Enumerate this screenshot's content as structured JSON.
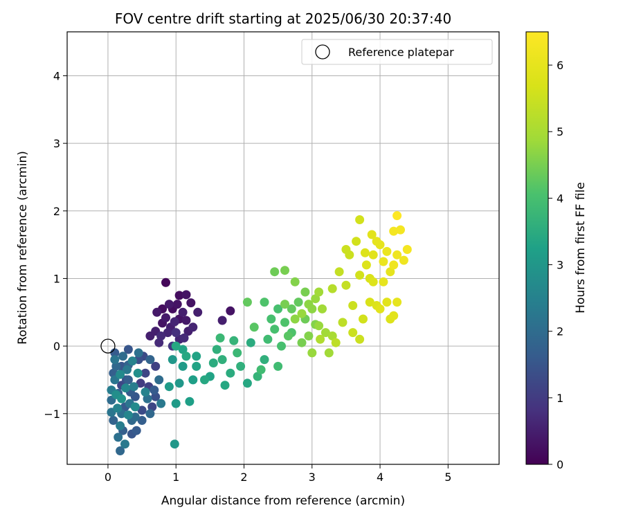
{
  "chart_data": {
    "type": "scatter",
    "title": "FOV centre drift starting at 2025/06/30 20:37:40",
    "xlabel": "Angular distance from reference (arcmin)",
    "ylabel": "Rotation from reference (arcmin)",
    "xlim": [
      -0.6,
      5.75
    ],
    "ylim": [
      -1.75,
      4.65
    ],
    "xticks": [
      0,
      1,
      2,
      3,
      4,
      5
    ],
    "yticks": [
      -1,
      0,
      1,
      2,
      3,
      4
    ],
    "xtick_labels": [
      "0",
      "1",
      "2",
      "3",
      "4",
      "5"
    ],
    "ytick_labels": [
      "−1",
      "0",
      "1",
      "2",
      "3",
      "4"
    ],
    "grid": true,
    "legend": {
      "position": "top-right",
      "entries": [
        "Reference platepar"
      ]
    },
    "reference_point": {
      "label": "Reference platepar",
      "x": 0,
      "y": 0
    },
    "colorbar": {
      "label": "Hours from first FF file",
      "range": [
        0,
        6.5
      ],
      "ticks": [
        0,
        1,
        2,
        3,
        4,
        5,
        6
      ],
      "tick_labels": [
        "0",
        "1",
        "2",
        "3",
        "4",
        "5",
        "6"
      ],
      "colormap": "viridis"
    },
    "colors": {
      "grid": "#b0b0b0",
      "reference_marker": "#000000"
    },
    "points": [
      [
        0.85,
        0.94,
        0.1
      ],
      [
        1.05,
        0.75,
        0.2
      ],
      [
        1.15,
        0.76,
        0.3
      ],
      [
        0.9,
        0.62,
        0.4
      ],
      [
        1.22,
        0.64,
        0.3
      ],
      [
        1.1,
        0.5,
        0.5
      ],
      [
        0.98,
        0.36,
        0.6
      ],
      [
        1.32,
        0.5,
        0.5
      ],
      [
        0.8,
        0.34,
        0.3
      ],
      [
        0.72,
        0.5,
        0.4
      ],
      [
        1.25,
        0.28,
        0.6
      ],
      [
        0.62,
        0.15,
        0.5
      ],
      [
        0.75,
        0.05,
        0.7
      ],
      [
        1.0,
        0.2,
        0.8
      ],
      [
        1.12,
        0.12,
        0.7
      ],
      [
        0.88,
        0.2,
        0.6
      ],
      [
        0.95,
        0.55,
        0.2
      ],
      [
        1.05,
        0.4,
        0.3
      ],
      [
        0.8,
        0.55,
        0.2
      ],
      [
        1.15,
        0.38,
        0.4
      ],
      [
        0.7,
        0.22,
        0.5
      ],
      [
        1.8,
        0.52,
        0.3
      ],
      [
        1.68,
        0.38,
        0.5
      ],
      [
        0.95,
        0.0,
        0.9
      ],
      [
        1.05,
        0.1,
        0.6
      ],
      [
        0.85,
        0.42,
        0.4
      ],
      [
        1.18,
        0.22,
        0.5
      ],
      [
        0.92,
        0.28,
        0.5
      ],
      [
        1.02,
        0.62,
        0.3
      ],
      [
        0.78,
        0.15,
        0.7
      ],
      [
        0.1,
        -0.1,
        1.6
      ],
      [
        0.2,
        -0.3,
        1.5
      ],
      [
        0.3,
        -0.5,
        1.7
      ],
      [
        0.15,
        -0.7,
        1.8
      ],
      [
        0.25,
        -0.9,
        1.6
      ],
      [
        0.35,
        -1.1,
        1.9
      ],
      [
        0.05,
        -0.8,
        2.0
      ],
      [
        0.45,
        -0.2,
        1.4
      ],
      [
        0.55,
        -0.4,
        1.2
      ],
      [
        0.4,
        -0.75,
        1.5
      ],
      [
        0.22,
        -1.25,
        1.7
      ],
      [
        0.18,
        -1.55,
        1.9
      ],
      [
        0.3,
        -0.05,
        1.5
      ],
      [
        0.5,
        -0.95,
        1.3
      ],
      [
        0.6,
        -0.6,
        1.1
      ],
      [
        0.1,
        -0.5,
        2.2
      ],
      [
        0.2,
        -1.0,
        2.1
      ],
      [
        0.28,
        -0.35,
        2.3
      ],
      [
        0.38,
        -0.6,
        2.4
      ],
      [
        0.08,
        -1.1,
        1.8
      ],
      [
        0.42,
        -1.25,
        1.6
      ],
      [
        0.65,
        -0.9,
        1.2
      ],
      [
        0.52,
        -0.15,
        1.3
      ],
      [
        0.32,
        -0.85,
        2.2
      ],
      [
        0.12,
        -0.3,
        1.9
      ],
      [
        0.48,
        -0.55,
        1.0
      ],
      [
        0.7,
        -0.3,
        1.1
      ],
      [
        0.7,
        -0.75,
        1.4
      ],
      [
        0.26,
        -0.62,
        2.6
      ],
      [
        0.18,
        -0.42,
        2.7
      ],
      [
        0.36,
        -0.22,
        2.5
      ],
      [
        0.44,
        -0.4,
        2.8
      ],
      [
        0.05,
        -0.65,
        2.4
      ],
      [
        0.2,
        -0.78,
        2.9
      ],
      [
        0.3,
        -1.02,
        2.6
      ],
      [
        0.14,
        -0.92,
        2.5
      ],
      [
        0.58,
        -0.78,
        2.1
      ],
      [
        0.62,
        -0.2,
        1.8
      ],
      [
        0.75,
        -0.5,
        2.0
      ],
      [
        0.22,
        -0.15,
        2.0
      ],
      [
        0.4,
        -1.05,
        2.0
      ],
      [
        0.25,
        -1.45,
        2.3
      ],
      [
        0.35,
        -1.3,
        1.5
      ],
      [
        0.15,
        -1.35,
        2.1
      ],
      [
        0.5,
        -1.1,
        1.7
      ],
      [
        0.08,
        -0.4,
        1.7
      ],
      [
        0.33,
        -0.68,
        1.6
      ],
      [
        0.27,
        -0.5,
        1.4
      ],
      [
        0.4,
        -0.9,
        2.7
      ],
      [
        0.1,
        -0.2,
        2.2
      ],
      [
        0.55,
        -0.68,
        2.5
      ],
      [
        0.62,
        -1.0,
        1.9
      ],
      [
        0.45,
        -0.1,
        2.1
      ],
      [
        0.2,
        -0.58,
        1.2
      ],
      [
        0.3,
        -0.28,
        1.8
      ],
      [
        0.18,
        -1.18,
        2.4
      ],
      [
        0.05,
        -0.98,
        2.2
      ],
      [
        0.68,
        -0.65,
        1.6
      ],
      [
        0.78,
        -0.85,
        2.3
      ],
      [
        0.12,
        -0.72,
        2.8
      ],
      [
        0.95,
        -0.2,
        3.0
      ],
      [
        1.1,
        -0.3,
        3.1
      ],
      [
        1.25,
        -0.5,
        3.2
      ],
      [
        0.98,
        -1.45,
        3.0
      ],
      [
        1.0,
        -0.85,
        3.1
      ],
      [
        1.2,
        -0.82,
        3.2
      ],
      [
        1.3,
        -0.3,
        3.3
      ],
      [
        1.05,
        -0.55,
        3.0
      ],
      [
        0.9,
        -0.6,
        3.1
      ],
      [
        1.15,
        -0.15,
        3.4
      ],
      [
        1.5,
        -0.45,
        3.3
      ],
      [
        1.68,
        -0.2,
        3.6
      ],
      [
        1.8,
        -0.4,
        3.5
      ],
      [
        1.72,
        -0.58,
        3.4
      ],
      [
        1.95,
        -0.3,
        3.6
      ],
      [
        2.05,
        -0.55,
        3.4
      ],
      [
        2.2,
        -0.45,
        3.7
      ],
      [
        1.9,
        -0.1,
        3.8
      ],
      [
        2.1,
        0.05,
        3.5
      ],
      [
        2.3,
        -0.2,
        3.6
      ],
      [
        2.15,
        0.28,
        4.2
      ],
      [
        1.65,
        0.12,
        3.8
      ],
      [
        2.25,
        -0.35,
        3.9
      ],
      [
        1.55,
        -0.25,
        3.5
      ],
      [
        1.85,
        0.08,
        3.7
      ],
      [
        1.0,
        0.0,
        3.4
      ],
      [
        1.1,
        -0.05,
        3.3
      ],
      [
        1.3,
        -0.15,
        3.3
      ],
      [
        1.42,
        -0.5,
        3.4
      ],
      [
        1.6,
        -0.05,
        3.6
      ],
      [
        2.35,
        0.1,
        3.9
      ],
      [
        2.45,
        0.25,
        4.0
      ],
      [
        2.5,
        0.55,
        4.0
      ],
      [
        2.6,
        0.35,
        4.1
      ],
      [
        2.7,
        0.2,
        4.1
      ],
      [
        2.55,
        0.0,
        4.0
      ],
      [
        2.8,
        0.65,
        4.3
      ],
      [
        2.45,
        1.1,
        4.4
      ],
      [
        2.6,
        1.12,
        4.5
      ],
      [
        2.75,
        0.95,
        4.6
      ],
      [
        2.9,
        0.4,
        4.4
      ],
      [
        3.0,
        0.55,
        4.7
      ],
      [
        3.1,
        0.3,
        4.8
      ],
      [
        2.95,
        0.15,
        4.6
      ],
      [
        3.05,
        0.7,
        4.8
      ],
      [
        3.2,
        0.2,
        4.9
      ],
      [
        3.0,
        -0.1,
        4.8
      ],
      [
        3.25,
        -0.1,
        4.9
      ],
      [
        2.85,
        0.05,
        4.5
      ],
      [
        2.65,
        0.15,
        4.2
      ],
      [
        2.4,
        0.4,
        4.0
      ],
      [
        2.5,
        -0.3,
        3.9
      ],
      [
        2.3,
        0.65,
        4.1
      ],
      [
        2.05,
        0.65,
        4.3
      ],
      [
        2.9,
        0.8,
        4.5
      ],
      [
        3.15,
        0.55,
        4.9
      ],
      [
        3.3,
        0.15,
        5.0
      ],
      [
        3.1,
        0.8,
        4.9
      ],
      [
        2.75,
        0.4,
        4.7
      ],
      [
        2.6,
        0.62,
        4.5
      ],
      [
        3.05,
        0.32,
        4.6
      ],
      [
        2.85,
        0.48,
        4.8
      ],
      [
        3.12,
        0.1,
        5.1
      ],
      [
        2.95,
        0.62,
        4.7
      ],
      [
        2.7,
        0.55,
        4.3
      ],
      [
        3.3,
        0.85,
        5.2
      ],
      [
        3.4,
        1.1,
        5.4
      ],
      [
        3.5,
        0.9,
        5.4
      ],
      [
        3.6,
        0.6,
        5.5
      ],
      [
        3.45,
        0.35,
        5.3
      ],
      [
        3.7,
        1.05,
        5.6
      ],
      [
        3.55,
        1.35,
        5.5
      ],
      [
        3.65,
        1.55,
        5.6
      ],
      [
        3.5,
        1.43,
        5.5
      ],
      [
        3.7,
        1.87,
        5.6
      ],
      [
        3.8,
        1.2,
        5.8
      ],
      [
        3.9,
        0.95,
        5.8
      ],
      [
        3.85,
        0.65,
        5.7
      ],
      [
        4.0,
        0.55,
        5.9
      ],
      [
        3.75,
        0.4,
        5.6
      ],
      [
        3.6,
        0.2,
        5.5
      ],
      [
        3.35,
        0.05,
        5.3
      ],
      [
        3.7,
        0.1,
        5.5
      ],
      [
        3.9,
        1.35,
        5.9
      ],
      [
        4.0,
        1.5,
        6.0
      ],
      [
        4.1,
        1.4,
        6.1
      ],
      [
        4.2,
        1.2,
        6.2
      ],
      [
        4.25,
        1.35,
        6.2
      ],
      [
        4.3,
        1.72,
        6.3
      ],
      [
        4.25,
        1.93,
        6.5
      ],
      [
        4.4,
        1.43,
        6.3
      ],
      [
        4.35,
        1.27,
        6.2
      ],
      [
        4.2,
        1.7,
        6.3
      ],
      [
        4.15,
        1.1,
        6.0
      ],
      [
        4.05,
        0.95,
        6.0
      ],
      [
        3.95,
        0.6,
        5.8
      ],
      [
        4.1,
        0.65,
        5.9
      ],
      [
        4.2,
        0.45,
        5.9
      ],
      [
        4.25,
        0.65,
        6.0
      ],
      [
        4.15,
        0.4,
        5.8
      ],
      [
        3.85,
        1.0,
        5.7
      ],
      [
        3.95,
        1.55,
        6.0
      ],
      [
        3.88,
        1.65,
        5.9
      ],
      [
        4.05,
        1.25,
        6.1
      ],
      [
        3.78,
        1.38,
        5.8
      ]
    ]
  }
}
